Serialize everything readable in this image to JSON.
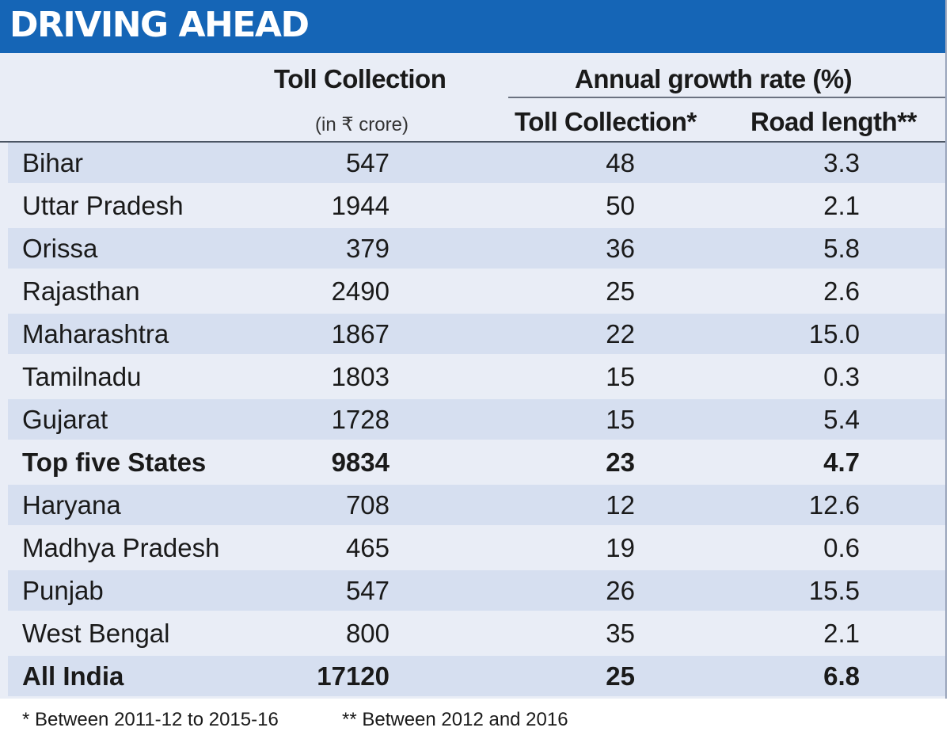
{
  "title": "DRIVING AHEAD",
  "chart_data": {
    "type": "table",
    "title": "DRIVING AHEAD",
    "columns": [
      {
        "label": "Toll Collection",
        "sublabel": "(in ₹ crore)"
      },
      {
        "group": "Annual growth rate (%)",
        "label": "Toll Collection*"
      },
      {
        "group": "Annual growth rate (%)",
        "label": "Road length**"
      }
    ],
    "group_header": "Annual growth rate (%)",
    "col_toll": "Toll Collection",
    "col_toll_unit": "(in ₹ crore)",
    "col_growth": "Toll Collection*",
    "col_road": "Road length**",
    "rows": [
      {
        "state": "Bihar",
        "toll": "547",
        "growth": "48",
        "road": "3.3",
        "bold": false
      },
      {
        "state": "Uttar Pradesh",
        "toll": "1944",
        "growth": "50",
        "road": "2.1",
        "bold": false
      },
      {
        "state": "Orissa",
        "toll": "379",
        "growth": "36",
        "road": "5.8",
        "bold": false
      },
      {
        "state": "Rajasthan",
        "toll": "2490",
        "growth": "25",
        "road": "2.6",
        "bold": false
      },
      {
        "state": "Maharashtra",
        "toll": "1867",
        "growth": "22",
        "road": "15.0",
        "bold": false
      },
      {
        "state": "Tamilnadu",
        "toll": "1803",
        "growth": "15",
        "road": "0.3",
        "bold": false
      },
      {
        "state": "Gujarat",
        "toll": "1728",
        "growth": "15",
        "road": "5.4",
        "bold": false
      },
      {
        "state": "Top five States",
        "toll": "9834",
        "growth": "23",
        "road": "4.7",
        "bold": true
      },
      {
        "state": "Haryana",
        "toll": "708",
        "growth": "12",
        "road": "12.6",
        "bold": false
      },
      {
        "state": "Madhya Pradesh",
        "toll": "465",
        "growth": "19",
        "road": "0.6",
        "bold": false
      },
      {
        "state": "Punjab",
        "toll": "547",
        "growth": "26",
        "road": "15.5",
        "bold": false
      },
      {
        "state": "West Bengal",
        "toll": "800",
        "growth": "35",
        "road": "2.1",
        "bold": false
      },
      {
        "state": "All India",
        "toll": "17120",
        "growth": "25",
        "road": "6.8",
        "bold": true
      }
    ],
    "footnotes": [
      "* Between 2011-12 to 2015-16",
      "** Between 2012 and 2016"
    ]
  },
  "colors": {
    "title_bar": "#1565b6",
    "panel": "#e9edf6",
    "row_stripe": "#d6dff0"
  }
}
